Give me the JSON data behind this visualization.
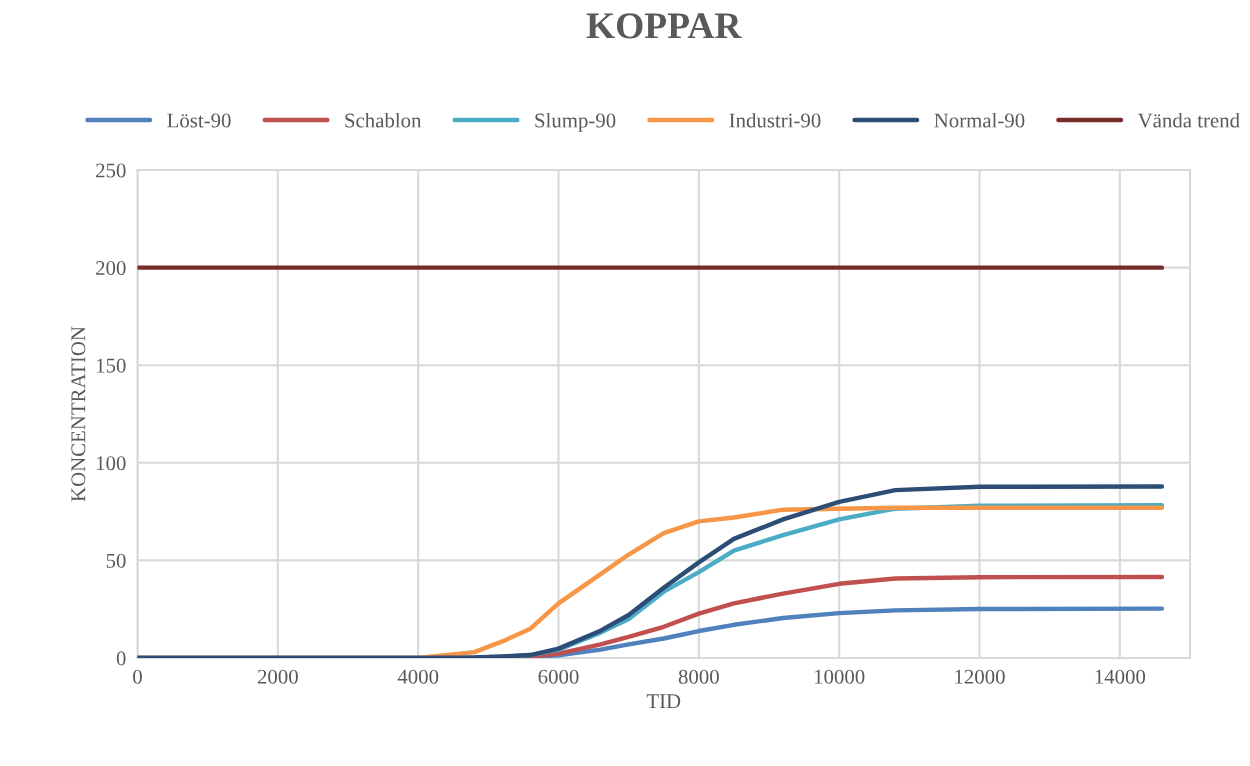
{
  "chart_data": {
    "type": "line",
    "title": "KOPPAR",
    "xlabel": "TID",
    "ylabel": "KONCENTRATION",
    "x": [
      0,
      4000,
      4800,
      5200,
      5600,
      6000,
      6600,
      7000,
      7500,
      8000,
      8500,
      9200,
      10000,
      10800,
      12000,
      14600
    ],
    "xlim": [
      0,
      15000
    ],
    "xticks": [
      0,
      2000,
      4000,
      6000,
      8000,
      10000,
      12000,
      14000
    ],
    "ylim": [
      0,
      250
    ],
    "yticks": [
      0,
      50,
      100,
      150,
      200,
      250
    ],
    "grid": true,
    "legend": "top",
    "marker": "none",
    "line_style": "solid",
    "series": [
      {
        "name": "Löst-90",
        "color": "#4f81bd",
        "values": [
          0,
          0,
          0,
          0.1,
          0.5,
          1.4,
          4.3,
          7,
          10,
          13.8,
          17,
          20.5,
          23,
          24.4,
          25.1,
          25.3
        ]
      },
      {
        "name": "Schablon",
        "color": "#c0504d",
        "values": [
          0,
          0,
          0,
          0.2,
          0.8,
          2.2,
          7,
          10.8,
          16,
          22.7,
          28,
          33,
          38,
          40.7,
          41.4,
          41.5
        ]
      },
      {
        "name": "Slump-90",
        "color": "#4bacc6",
        "values": [
          0,
          0,
          0.2,
          0.6,
          1.5,
          4.3,
          13,
          20,
          34,
          44,
          55,
          63,
          71,
          76.5,
          78,
          78.3
        ]
      },
      {
        "name": "Industri-90",
        "color": "#f79646",
        "values": [
          0,
          0,
          3,
          8.5,
          15,
          28,
          43,
          53,
          64,
          70,
          72,
          76,
          76.5,
          77,
          77,
          77
        ]
      },
      {
        "name": "Normal-90",
        "color": "#2c4d75",
        "values": [
          0,
          0,
          0.3,
          0.8,
          1.5,
          4.8,
          14,
          22,
          36,
          49,
          61,
          71,
          80,
          86,
          87.7,
          87.9
        ]
      },
      {
        "name": "Vända trend",
        "color": "#772c2a",
        "x": [
          0,
          14600
        ],
        "values": [
          200,
          200
        ]
      }
    ]
  }
}
